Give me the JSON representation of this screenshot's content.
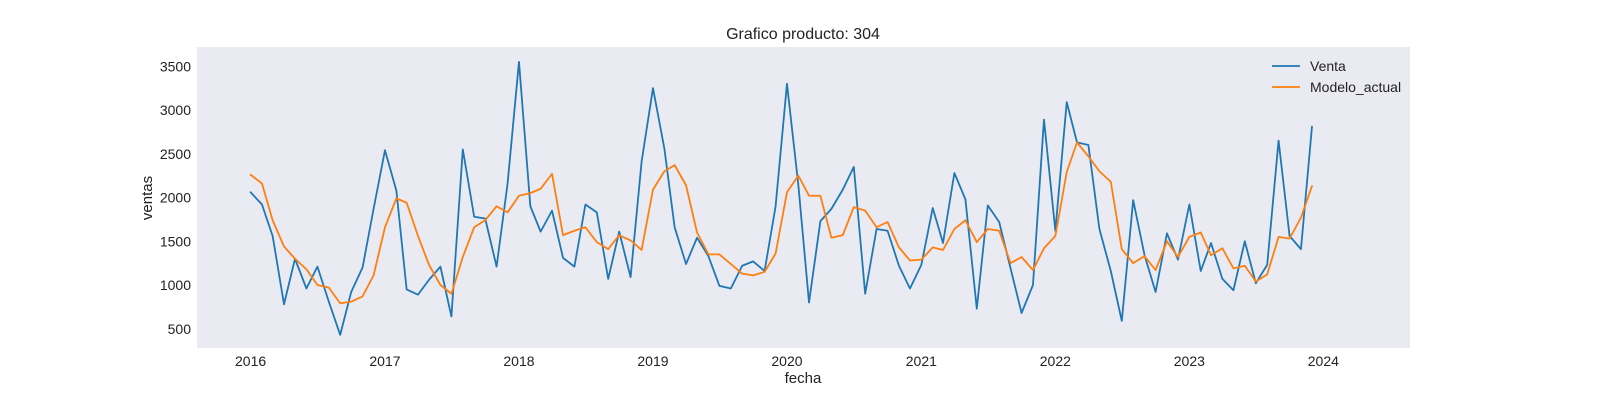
{
  "chart_data": {
    "type": "line",
    "title": "Grafico producto: 304",
    "xlabel": "fecha",
    "ylabel": "ventas",
    "xlim": [
      "2015-08-08",
      "2024-08-24"
    ],
    "ylim": [
      280,
      3720
    ],
    "xticks": [
      "2016",
      "2017",
      "2018",
      "2019",
      "2020",
      "2021",
      "2022",
      "2023",
      "2024"
    ],
    "yticks": [
      500,
      1000,
      1500,
      2000,
      2500,
      3000,
      3500
    ],
    "grid": false,
    "legend_position": "top-right",
    "x": [
      "2016-01",
      "2016-02",
      "2016-03",
      "2016-04",
      "2016-05",
      "2016-06",
      "2016-07",
      "2016-08",
      "2016-09",
      "2016-10",
      "2016-11",
      "2016-12",
      "2017-01",
      "2017-02",
      "2017-03",
      "2017-04",
      "2017-05",
      "2017-06",
      "2017-07",
      "2017-08",
      "2017-09",
      "2017-10",
      "2017-11",
      "2017-12",
      "2018-01",
      "2018-02",
      "2018-03",
      "2018-04",
      "2018-05",
      "2018-06",
      "2018-07",
      "2018-08",
      "2018-09",
      "2018-10",
      "2018-11",
      "2018-12",
      "2019-01",
      "2019-02",
      "2019-03",
      "2019-04",
      "2019-05",
      "2019-06",
      "2019-07",
      "2019-08",
      "2019-09",
      "2019-10",
      "2019-11",
      "2019-12",
      "2020-01",
      "2020-02",
      "2020-03",
      "2020-04",
      "2020-05",
      "2020-06",
      "2020-07",
      "2020-08",
      "2020-09",
      "2020-10",
      "2020-11",
      "2020-12",
      "2021-01",
      "2021-02",
      "2021-03",
      "2021-04",
      "2021-05",
      "2021-06",
      "2021-07",
      "2021-08",
      "2021-09",
      "2021-10",
      "2021-11",
      "2021-12",
      "2022-01",
      "2022-02",
      "2022-03",
      "2022-04",
      "2022-05",
      "2022-06",
      "2022-07",
      "2022-08",
      "2022-09",
      "2022-10",
      "2022-11",
      "2022-12",
      "2023-01",
      "2023-02",
      "2023-03",
      "2023-04",
      "2023-05",
      "2023-06",
      "2023-07",
      "2023-08",
      "2023-09",
      "2023-10",
      "2023-11",
      "2023-12"
    ],
    "series": [
      {
        "name": "Venta",
        "color": "#1f77b4",
        "values": [
          2060,
          1920,
          1560,
          780,
          1300,
          960,
          1210,
          810,
          430,
          920,
          1200,
          1870,
          2540,
          2080,
          950,
          890,
          1060,
          1210,
          640,
          2550,
          1780,
          1760,
          1210,
          2160,
          3550,
          1900,
          1610,
          1850,
          1310,
          1210,
          1920,
          1830,
          1070,
          1610,
          1090,
          2410,
          3250,
          2560,
          1660,
          1240,
          1540,
          1330,
          990,
          960,
          1220,
          1270,
          1160,
          1900,
          3300,
          2140,
          800,
          1730,
          1870,
          2090,
          2350,
          900,
          1640,
          1620,
          1220,
          960,
          1230,
          1880,
          1480,
          2280,
          1980,
          730,
          1910,
          1720,
          1190,
          680,
          1000,
          2890,
          1620,
          3090,
          2630,
          2600,
          1640,
          1160,
          590,
          1970,
          1340,
          920,
          1590,
          1290,
          1920,
          1160,
          1480,
          1070,
          940,
          1500,
          1020,
          1230,
          2650,
          1560,
          1410,
          2810
        ]
      },
      {
        "name": "Modelo_actual",
        "color": "#ff7f0e",
        "values": [
          2260,
          2160,
          1740,
          1440,
          1300,
          1180,
          1000,
          970,
          790,
          810,
          870,
          1110,
          1660,
          1990,
          1940,
          1560,
          1230,
          1000,
          900,
          1320,
          1660,
          1740,
          1900,
          1830,
          2020,
          2050,
          2100,
          2270,
          1570,
          1620,
          1660,
          1490,
          1410,
          1570,
          1510,
          1400,
          2090,
          2300,
          2370,
          2140,
          1600,
          1350,
          1350,
          1240,
          1130,
          1110,
          1150,
          1360,
          2060,
          2250,
          2020,
          2020,
          1540,
          1570,
          1890,
          1850,
          1660,
          1720,
          1430,
          1280,
          1290,
          1430,
          1400,
          1640,
          1740,
          1490,
          1640,
          1620,
          1250,
          1320,
          1170,
          1420,
          1560,
          2290,
          2630,
          2470,
          2300,
          2180,
          1410,
          1250,
          1330,
          1170,
          1500,
          1320,
          1550,
          1600,
          1340,
          1420,
          1190,
          1220,
          1040,
          1120,
          1550,
          1530,
          1770,
          2130
        ]
      }
    ]
  }
}
